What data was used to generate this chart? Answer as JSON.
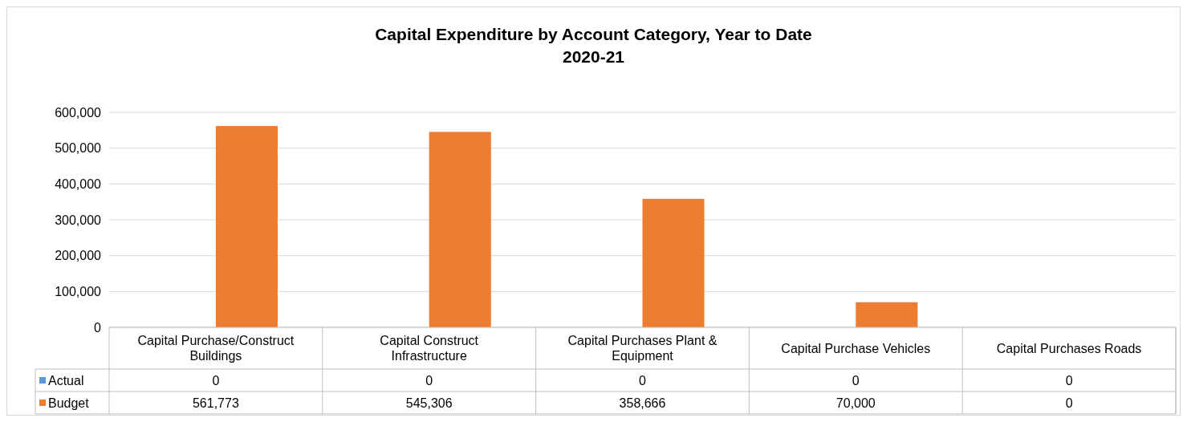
{
  "chart_data": {
    "type": "bar",
    "title": "Capital Expenditure by Account Category, Year to Date",
    "subtitle": "2020-21",
    "categories": [
      "Capital Purchase/Construct Buildings",
      "Capital Construct Infrastructure",
      "Capital Purchases Plant & Equipment",
      "Capital Purchase Vehicles",
      "Capital Purchases Roads"
    ],
    "series": [
      {
        "name": "Actual",
        "color": "#5b9bd5",
        "values": [
          0,
          0,
          0,
          0,
          0
        ],
        "value_labels": [
          "0",
          "0",
          "0",
          "0",
          "0"
        ]
      },
      {
        "name": "Budget",
        "color": "#ed7d31",
        "values": [
          561773,
          545306,
          358666,
          70000,
          0
        ],
        "value_labels": [
          "561,773",
          "545,306",
          "358,666",
          "70,000",
          "0"
        ]
      }
    ],
    "ylim": [
      0,
      600000
    ],
    "yticks": [
      {
        "value": 0,
        "label": "0"
      },
      {
        "value": 100000,
        "label": "100,000"
      },
      {
        "value": 200000,
        "label": "200,000"
      },
      {
        "value": 300000,
        "label": "300,000"
      },
      {
        "value": 400000,
        "label": "400,000"
      },
      {
        "value": 500000,
        "label": "500,000"
      },
      {
        "value": 600000,
        "label": "600,000"
      }
    ],
    "grid": "y",
    "legend": "bottom"
  }
}
